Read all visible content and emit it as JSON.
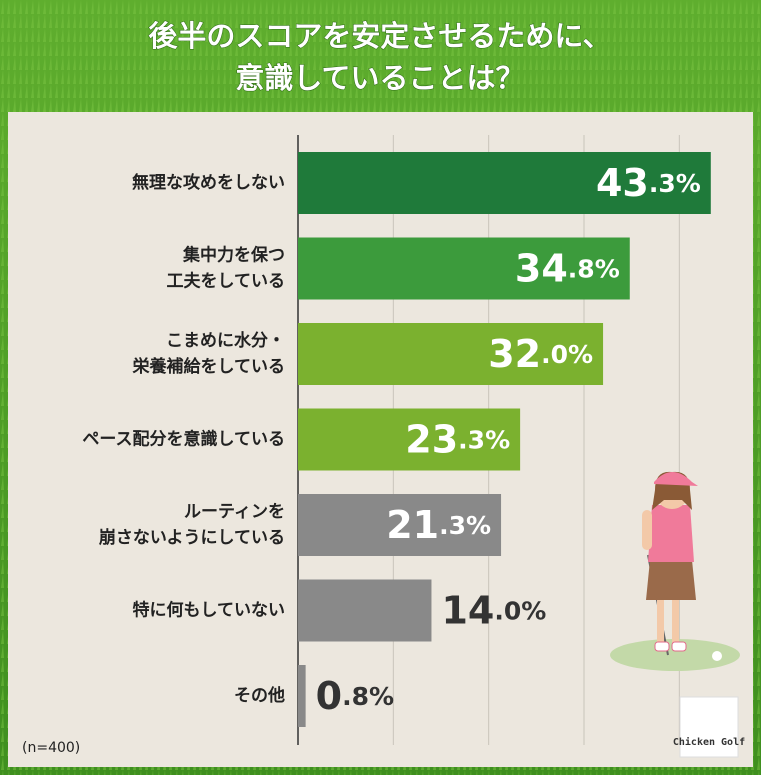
{
  "chart_data": {
    "type": "hbar",
    "title": "後半のスコアを安定させるために、\n意識していることは？",
    "categories": [
      "無理な攻めをしない",
      "集中力を保つ\n工夫をしている",
      "こまめに水分・\n栄養補給をしている",
      "ペース配分を意識している",
      "ルーティンを\n崩さないようにしている",
      "特に何もしていない",
      "その他"
    ],
    "values": [
      43.3,
      34.8,
      32.0,
      23.3,
      21.3,
      14.0,
      0.8
    ],
    "value_labels": [
      "43.3%",
      "34.8%",
      "32.0%",
      "23.3%",
      "21.3%",
      "14.0%",
      "0.8%"
    ],
    "colors": [
      "#1f7a3a",
      "#3c9b3c",
      "#7bb12f",
      "#7bb12f",
      "#898989",
      "#898989",
      "#898989"
    ],
    "xlim": [
      0,
      45
    ],
    "xticks": [
      0,
      10,
      20,
      30,
      40
    ],
    "grid": true,
    "note": "(n=400)",
    "logo": "Chicken Golf"
  }
}
